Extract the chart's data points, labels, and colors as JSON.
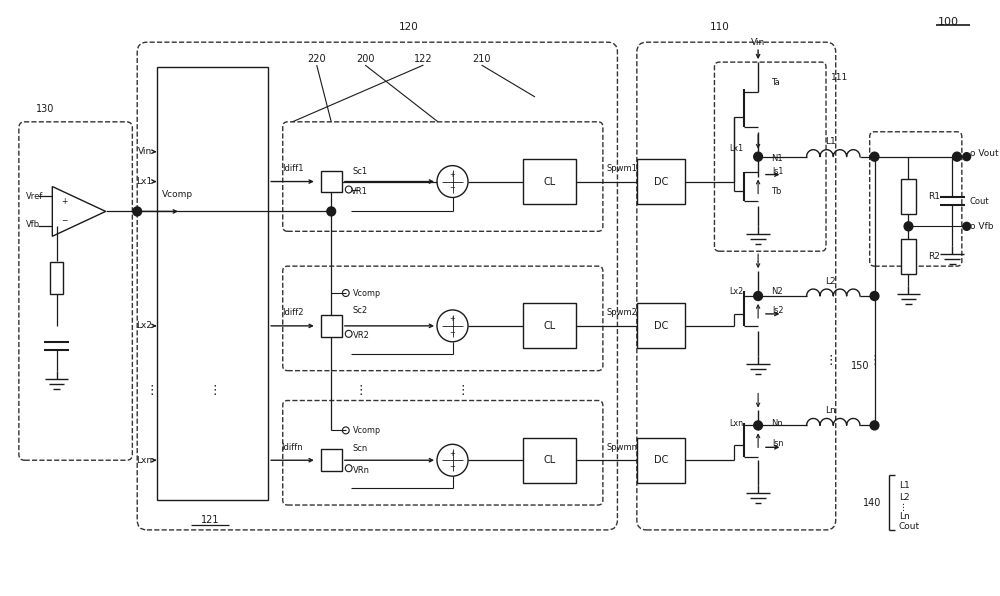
{
  "bg_color": "#ffffff",
  "lc": "#1a1a1a",
  "fig_width": 10.0,
  "fig_height": 5.96,
  "xlim": [
    0,
    100
  ],
  "ylim": [
    0,
    59.6
  ]
}
